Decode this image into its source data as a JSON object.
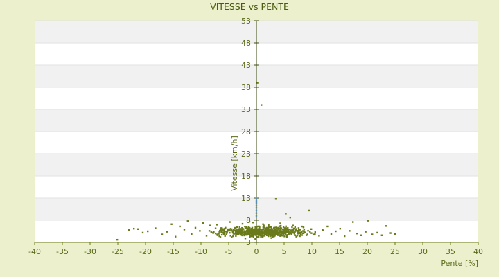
{
  "chart_data": {
    "type": "scatter",
    "title": "VITESSE vs PENTE",
    "xlabel": "Pente [%]",
    "ylabel": "Vitesse [km/h]",
    "xlim": [
      -40,
      40
    ],
    "ylim": [
      3,
      53
    ],
    "x_ticks": [
      "-40",
      "-35",
      "-30",
      "-25",
      "-20",
      "-15",
      "-10",
      "-5",
      "0",
      "5",
      "10",
      "15",
      "20",
      "25",
      "30",
      "35",
      "40"
    ],
    "y_ticks": [
      "3",
      "8",
      "13",
      "18",
      "23",
      "28",
      "33",
      "38",
      "43",
      "48",
      "53"
    ],
    "grid": true,
    "colors": {
      "background": "#ecf0cc",
      "band_light": "#ffffff",
      "band_dark": "#f1f1f1",
      "marker": "#6b7a1a",
      "marker_highlight": "#5b8fb0",
      "axis": "#6b7a1a"
    },
    "series": [
      {
        "highlight": false,
        "points": [
          [
            0.2,
            39.0
          ],
          [
            0.9,
            34.0
          ],
          [
            3.5,
            12.8
          ],
          [
            9.5,
            10.2
          ],
          [
            5.3,
            9.5
          ],
          [
            6.1,
            8.6
          ],
          [
            -25.1,
            3.6
          ],
          [
            -23.0,
            5.8
          ],
          [
            -22.1,
            6.1
          ],
          [
            -21.4,
            6.0
          ],
          [
            -20.5,
            5.2
          ],
          [
            -19.6,
            5.5
          ],
          [
            -18.2,
            6.2
          ],
          [
            -17.0,
            4.8
          ],
          [
            -16.1,
            5.4
          ],
          [
            -15.3,
            7.1
          ],
          [
            -14.6,
            4.3
          ],
          [
            -13.8,
            6.6
          ],
          [
            -13.0,
            5.9
          ],
          [
            -12.4,
            7.8
          ],
          [
            -11.7,
            4.9
          ],
          [
            -11.0,
            6.3
          ],
          [
            -10.2,
            5.6
          ],
          [
            -9.6,
            7.4
          ],
          [
            -9.0,
            4.5
          ],
          [
            -8.4,
            6.8
          ],
          [
            -7.8,
            5.1
          ],
          [
            -7.1,
            7.0
          ],
          [
            -6.5,
            4.2
          ],
          [
            -5.9,
            6.0
          ],
          [
            -5.3,
            5.3
          ],
          [
            -4.8,
            7.6
          ],
          [
            -4.2,
            4.4
          ],
          [
            -3.6,
            6.4
          ],
          [
            -3.0,
            5.0
          ],
          [
            -2.5,
            7.2
          ],
          [
            -2.0,
            3.9
          ],
          [
            -1.5,
            6.1
          ],
          [
            -1.0,
            5.5
          ],
          [
            -0.6,
            7.5
          ],
          [
            -0.2,
            3.8
          ],
          [
            0.3,
            6.6
          ],
          [
            0.7,
            4.6
          ],
          [
            1.2,
            7.1
          ],
          [
            1.7,
            5.2
          ],
          [
            2.2,
            6.9
          ],
          [
            2.7,
            4.0
          ],
          [
            3.2,
            6.3
          ],
          [
            3.8,
            5.4
          ],
          [
            4.3,
            7.3
          ],
          [
            4.9,
            4.7
          ],
          [
            5.4,
            6.2
          ],
          [
            6.0,
            5.0
          ],
          [
            6.6,
            6.8
          ],
          [
            7.2,
            4.3
          ],
          [
            7.9,
            5.9
          ],
          [
            8.5,
            6.4
          ],
          [
            9.2,
            4.8
          ],
          [
            9.9,
            6.0
          ],
          [
            10.6,
            5.3
          ],
          [
            11.3,
            4.5
          ],
          [
            12.0,
            5.7
          ],
          [
            12.8,
            6.6
          ],
          [
            13.5,
            4.9
          ],
          [
            14.3,
            5.5
          ],
          [
            15.1,
            6.1
          ],
          [
            15.9,
            4.4
          ],
          [
            16.8,
            5.6
          ],
          [
            17.4,
            7.6
          ],
          [
            18.1,
            5.0
          ],
          [
            18.9,
            4.6
          ],
          [
            19.7,
            5.4
          ],
          [
            20.1,
            7.9
          ],
          [
            20.9,
            4.8
          ],
          [
            21.8,
            5.2
          ],
          [
            22.6,
            4.6
          ],
          [
            23.4,
            6.7
          ],
          [
            24.2,
            5.1
          ],
          [
            25.0,
            4.9
          ]
        ]
      },
      {
        "highlight": true,
        "points": [
          [
            0.0,
            9.0
          ],
          [
            0.0,
            9.6
          ],
          [
            0.0,
            10.2
          ],
          [
            0.0,
            10.8
          ],
          [
            0.0,
            11.3
          ],
          [
            0.0,
            11.9
          ],
          [
            0.0,
            12.4
          ],
          [
            0.0,
            12.9
          ]
        ]
      }
    ]
  }
}
